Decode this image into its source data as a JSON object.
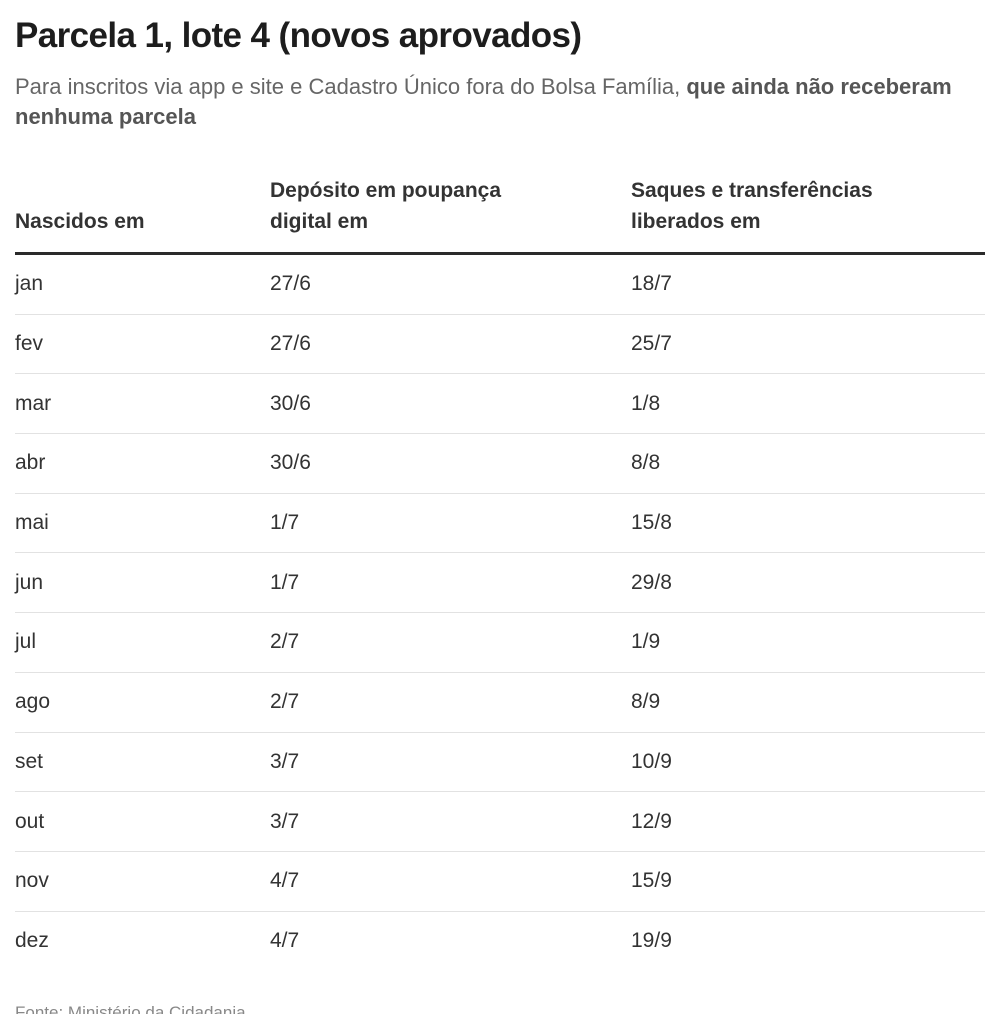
{
  "colors": {
    "title": "#1d1d1d",
    "subtitle": "#666666",
    "subtitle_bold": "#555555",
    "text": "#333333",
    "header_rule": "#2a2a2a",
    "row_rule": "#e2e2e2",
    "source": "#888888"
  },
  "chart_data": {
    "type": "table",
    "title": "Parcela 1, lote 4 (novos aprovados)",
    "subtitle": {
      "regular": "Para inscritos via app e site e Cadastro Único fora do Bolsa Família,",
      "bold": "que ainda não receberam nenhuma parcela"
    },
    "columns": [
      "Nascidos em",
      "Depósito em poupança digital em",
      "Saques e transferências liberados em"
    ],
    "rows": [
      [
        "jan",
        "27/6",
        "18/7"
      ],
      [
        "fev",
        "27/6",
        "25/7"
      ],
      [
        "mar",
        "30/6",
        "1/8"
      ],
      [
        "abr",
        "30/6",
        "8/8"
      ],
      [
        "mai",
        "1/7",
        "15/8"
      ],
      [
        "jun",
        "1/7",
        "29/8"
      ],
      [
        "jul",
        "2/7",
        "1/9"
      ],
      [
        "ago",
        "2/7",
        "8/9"
      ],
      [
        "set",
        "3/7",
        "10/9"
      ],
      [
        "out",
        "3/7",
        "12/9"
      ],
      [
        "nov",
        "4/7",
        "15/9"
      ],
      [
        "dez",
        "4/7",
        "19/9"
      ]
    ],
    "source": "Fonte: Ministério da Cidadania"
  }
}
